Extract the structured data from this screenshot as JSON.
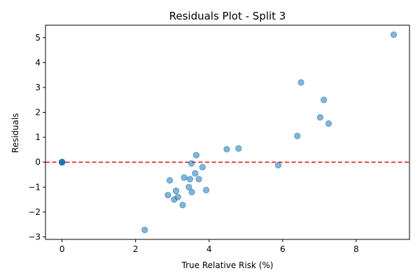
{
  "chart_data": {
    "type": "scatter",
    "title": "Residuals Plot - Split 3",
    "xlabel": "True Relative Risk (%)",
    "ylabel": "Residuals",
    "xlim": [
      -0.45,
      9.45
    ],
    "ylim": [
      -3.1,
      5.5
    ],
    "xticks": [
      0,
      2,
      4,
      6,
      8
    ],
    "yticks": [
      -3,
      -2,
      -1,
      0,
      1,
      2,
      3,
      4,
      5
    ],
    "xtick_labels": [
      "0",
      "2",
      "4",
      "6",
      "8"
    ],
    "ytick_labels": [
      "−3",
      "−2",
      "−1",
      "0",
      "1",
      "2",
      "3",
      "4",
      "5"
    ],
    "reference_line": {
      "y": 0,
      "style": "dashed",
      "color": "#e01b1b"
    },
    "point_color": "#1f77b4",
    "points": [
      {
        "x": 0.0,
        "y": 0.0
      },
      {
        "x": 0.0,
        "y": 0.0
      },
      {
        "x": 0.0,
        "y": 0.0
      },
      {
        "x": 0.0,
        "y": 0.0
      },
      {
        "x": 0.0,
        "y": 0.0
      },
      {
        "x": 0.0,
        "y": 0.0
      },
      {
        "x": 2.25,
        "y": -2.72
      },
      {
        "x": 2.88,
        "y": -1.32
      },
      {
        "x": 2.93,
        "y": -0.73
      },
      {
        "x": 3.05,
        "y": -1.5
      },
      {
        "x": 3.1,
        "y": -1.15
      },
      {
        "x": 3.15,
        "y": -1.4
      },
      {
        "x": 3.28,
        "y": -1.72
      },
      {
        "x": 3.32,
        "y": -0.62
      },
      {
        "x": 3.45,
        "y": -1.0
      },
      {
        "x": 3.48,
        "y": -0.68
      },
      {
        "x": 3.52,
        "y": -0.05
      },
      {
        "x": 3.53,
        "y": -1.2
      },
      {
        "x": 3.62,
        "y": -0.45
      },
      {
        "x": 3.65,
        "y": 0.28
      },
      {
        "x": 3.72,
        "y": -0.68
      },
      {
        "x": 3.82,
        "y": -0.2
      },
      {
        "x": 3.92,
        "y": -1.12
      },
      {
        "x": 4.48,
        "y": 0.52
      },
      {
        "x": 4.8,
        "y": 0.55
      },
      {
        "x": 5.88,
        "y": -0.12
      },
      {
        "x": 6.4,
        "y": 1.05
      },
      {
        "x": 6.5,
        "y": 3.2
      },
      {
        "x": 7.02,
        "y": 1.8
      },
      {
        "x": 7.12,
        "y": 2.5
      },
      {
        "x": 7.25,
        "y": 1.55
      },
      {
        "x": 9.02,
        "y": 5.12
      }
    ]
  }
}
